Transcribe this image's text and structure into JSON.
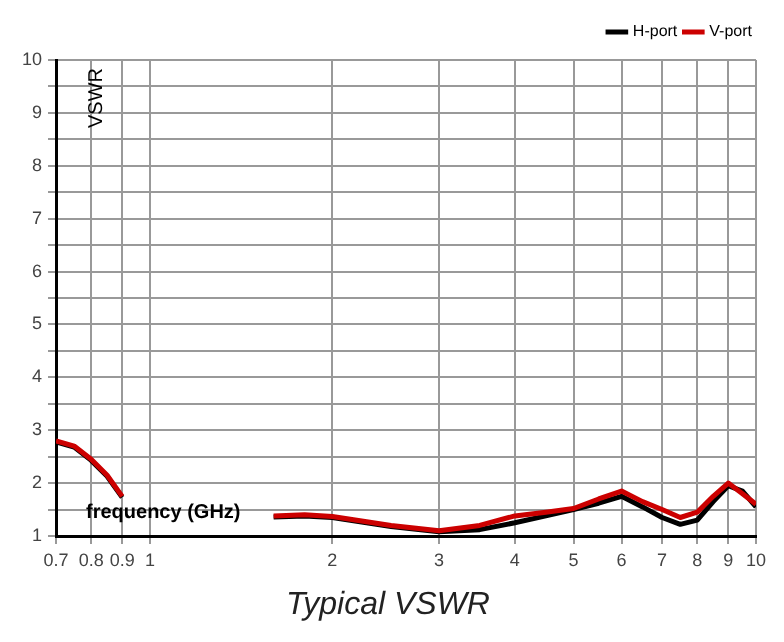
{
  "chart_data": {
    "type": "line",
    "title": "Typical VSWR",
    "xlabel": "frequency (GHz)",
    "ylabel": "VSWR",
    "x": [
      0.7,
      0.75,
      0.8,
      0.85,
      0.9,
      1.2,
      1.6,
      1.8,
      2,
      2.5,
      3,
      3.5,
      4,
      4.5,
      5,
      5.5,
      6,
      6.5,
      7,
      7.5,
      8,
      8.5,
      9,
      9.5,
      10
    ],
    "series": [
      {
        "name": "H-port",
        "color": "#000000",
        "values": [
          2.78,
          2.68,
          2.43,
          2.13,
          1.73,
          null,
          1.36,
          1.38,
          1.35,
          1.18,
          1.08,
          1.12,
          1.25,
          1.38,
          1.5,
          1.62,
          1.75,
          1.55,
          1.35,
          1.22,
          1.3,
          1.65,
          1.95,
          1.85,
          1.55
        ]
      },
      {
        "name": "V-port",
        "color": "#cc0000",
        "values": [
          2.8,
          2.7,
          2.45,
          2.15,
          1.75,
          null,
          1.38,
          1.4,
          1.37,
          1.2,
          1.1,
          1.2,
          1.38,
          1.45,
          1.52,
          1.7,
          1.85,
          1.65,
          1.5,
          1.35,
          1.45,
          1.75,
          2.0,
          1.8,
          1.6
        ]
      }
    ],
    "log": "x",
    "xlim": [
      0.7,
      10
    ],
    "xticks": [
      0.7,
      0.8,
      0.9,
      1,
      2,
      3,
      4,
      5,
      6,
      7,
      8,
      9,
      10
    ],
    "ylim": [
      1,
      10
    ],
    "yticks": [
      1,
      {
        "value": 1.5,
        "label": null
      },
      2,
      {
        "value": 2.5,
        "label": null
      },
      3,
      {
        "value": 3.5,
        "label": null
      },
      4,
      {
        "value": 4.5,
        "label": null
      },
      5,
      {
        "value": 5.5,
        "label": null
      },
      6,
      {
        "value": 6.5,
        "label": null
      },
      7,
      {
        "value": 7.5,
        "label": null
      },
      8,
      {
        "value": 8.5,
        "label": null
      },
      9,
      {
        "value": 9.5,
        "label": null
      },
      10
    ],
    "grid": true,
    "legend": "top right",
    "marker": "none",
    "line_style": "solid"
  }
}
